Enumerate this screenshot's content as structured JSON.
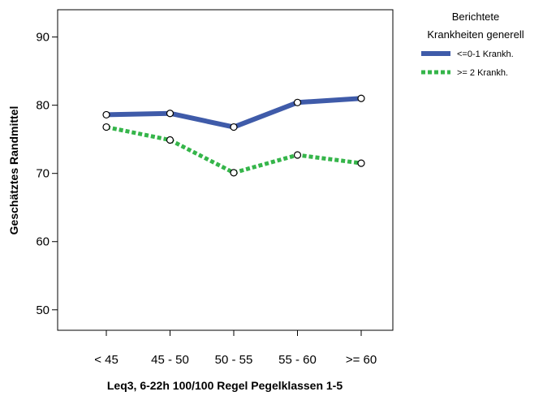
{
  "chart_data": {
    "type": "line",
    "title": "",
    "xlabel": "Leq3, 6-22h 100/100 Regel Pegelklassen 1-5",
    "ylabel": "Geschätztes Randmittel",
    "categories": [
      "< 45",
      "45 - 50",
      "50 - 55",
      "55 - 60",
      ">= 60"
    ],
    "ylim": [
      47,
      94
    ],
    "yticks": [
      50,
      60,
      70,
      80,
      90
    ],
    "grid": false,
    "legend": {
      "title_line1": "Berichtete",
      "title_line2": "Krankheiten generell",
      "position": "top-right"
    },
    "series": [
      {
        "name": "<=0-1 Krankh.",
        "values": [
          78.6,
          78.8,
          76.8,
          80.4,
          81.0
        ],
        "color": "#3f5ba9",
        "style": "solid"
      },
      {
        "name": ">= 2 Krankh.",
        "values": [
          76.8,
          74.9,
          70.1,
          72.7,
          71.5
        ],
        "color": "#35b54a",
        "style": "dotted"
      }
    ]
  }
}
